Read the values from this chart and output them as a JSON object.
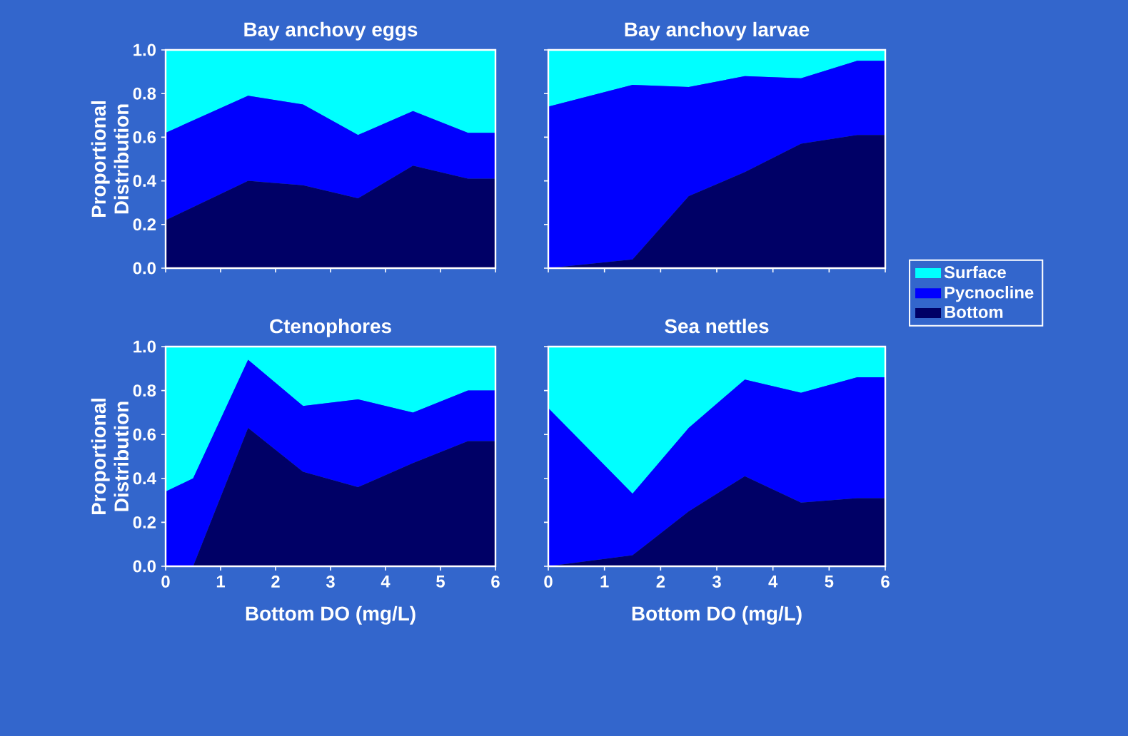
{
  "chart_data": [
    {
      "type": "area",
      "stacked": true,
      "title": "Bay anchovy eggs",
      "ylabel": "Proportional Distribution",
      "tick_labels": "y",
      "legend": false,
      "x": [
        0,
        1.5,
        2.5,
        3.5,
        4.5,
        5.5,
        6
      ],
      "series": [
        {
          "color": "#000066",
          "values": [
            0.22,
            0.4,
            0.38,
            0.32,
            0.47,
            0.41,
            0.41
          ]
        },
        {
          "color": "#0000ff",
          "values": [
            0.4,
            0.39,
            0.37,
            0.29,
            0.25,
            0.21,
            0.21
          ]
        },
        {
          "color": "#00ffff",
          "values": [
            0.38,
            0.21,
            0.25,
            0.39,
            0.28,
            0.38,
            0.38
          ]
        }
      ],
      "xlim": [
        0,
        6
      ],
      "ylim": [
        0,
        1
      ],
      "xticks": [
        0,
        1,
        2,
        3,
        4,
        5,
        6
      ],
      "yticks": [
        {
          "value": 0,
          "label": "0.0"
        },
        {
          "value": 0.2,
          "label": "0.2"
        },
        {
          "value": 0.4,
          "label": "0.4"
        },
        {
          "value": 0.6,
          "label": "0.6"
        },
        {
          "value": 0.8,
          "label": "0.8"
        },
        {
          "value": 1,
          "label": "1.0"
        }
      ]
    },
    {
      "type": "area",
      "stacked": true,
      "title": "Bay anchovy larvae",
      "tick_labels": false,
      "legend": "right",
      "x": [
        0,
        1.5,
        2.5,
        3.5,
        4.5,
        5.5,
        6
      ],
      "series": [
        {
          "name": "Bottom",
          "color": "#000066",
          "values": [
            0,
            0.04,
            0.33,
            0.44,
            0.57,
            0.61,
            0.61
          ]
        },
        {
          "name": "Pycnocline",
          "color": "#0000ff",
          "values": [
            0.74,
            0.8,
            0.5,
            0.44,
            0.3,
            0.34,
            0.34
          ]
        },
        {
          "name": "Surface",
          "color": "#00ffff",
          "values": [
            0.26,
            0.16,
            0.17,
            0.12,
            0.13,
            0.05,
            0.05
          ]
        }
      ],
      "xlim": [
        0,
        6
      ],
      "ylim": [
        0,
        1
      ],
      "xticks": [
        0,
        1,
        2,
        3,
        4,
        5,
        6
      ],
      "yticks": [
        0,
        0.2,
        0.4,
        0.6,
        0.8,
        1
      ]
    },
    {
      "type": "area",
      "stacked": true,
      "title": "Ctenophores",
      "xlabel": "Bottom DO (mg/L)",
      "ylabel": "Proportional Distribution",
      "legend": false,
      "x": [
        0,
        0.5,
        1.5,
        2.5,
        3.5,
        4.5,
        5.5,
        6
      ],
      "series": [
        {
          "color": "#000066",
          "values": [
            0,
            0,
            0.63,
            0.43,
            0.36,
            0.47,
            0.57,
            0.57
          ]
        },
        {
          "color": "#0000ff",
          "values": [
            0.34,
            0.4,
            0.31,
            0.3,
            0.4,
            0.23,
            0.23,
            0.23
          ]
        },
        {
          "color": "#00ffff",
          "values": [
            0.66,
            0.6,
            0.06,
            0.27,
            0.24,
            0.3,
            0.2,
            0.2
          ]
        }
      ],
      "xlim": [
        0,
        6
      ],
      "ylim": [
        0,
        1
      ],
      "xticks": [
        0,
        1,
        2,
        3,
        4,
        5,
        6
      ],
      "yticks": [
        {
          "value": 0,
          "label": "0.0"
        },
        {
          "value": 0.2,
          "label": "0.2"
        },
        {
          "value": 0.4,
          "label": "0.4"
        },
        {
          "value": 0.6,
          "label": "0.6"
        },
        {
          "value": 0.8,
          "label": "0.8"
        },
        {
          "value": 1,
          "label": "1.0"
        }
      ]
    },
    {
      "type": "area",
      "stacked": true,
      "title": "Sea nettles",
      "xlabel": "Bottom DO (mg/L)",
      "tick_labels": "x",
      "legend": false,
      "x": [
        0,
        1.5,
        2.5,
        3.5,
        4.5,
        5.5,
        6
      ],
      "series": [
        {
          "color": "#000066",
          "values": [
            0,
            0.05,
            0.25,
            0.41,
            0.29,
            0.31,
            0.31
          ]
        },
        {
          "color": "#0000ff",
          "values": [
            0.72,
            0.28,
            0.38,
            0.44,
            0.5,
            0.55,
            0.55
          ]
        },
        {
          "color": "#00ffff",
          "values": [
            0.28,
            0.67,
            0.37,
            0.15,
            0.21,
            0.14,
            0.14
          ]
        }
      ],
      "xlim": [
        0,
        6
      ],
      "ylim": [
        0,
        1
      ],
      "xticks": [
        0,
        1,
        2,
        3,
        4,
        5,
        6
      ],
      "yticks": [
        0,
        0.2,
        0.4,
        0.6,
        0.8,
        1
      ]
    }
  ]
}
